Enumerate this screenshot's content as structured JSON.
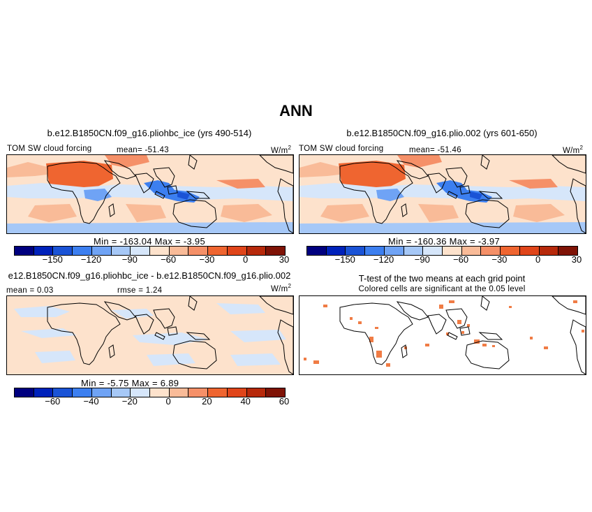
{
  "figure": {
    "title": "ANN"
  },
  "panels": [
    {
      "title": "b.e12.B1850CN.f09_g16.pliohbc_ice (yrs 490-514)",
      "variable": "TOM SW cloud forcing",
      "mean_text": "mean= -51.43",
      "units_base": "W/m",
      "units_exp": "2",
      "minmax_text": "Min = -163.04 Max = -3.95",
      "colorbar_ticks": [
        "-150",
        "-120",
        "-90",
        "-60",
        "-30",
        "0",
        "30"
      ]
    },
    {
      "title": "b.e12.B1850CN.f09_g16.plio.002 (yrs 601-650)",
      "variable": "TOM SW cloud forcing",
      "mean_text": "mean= -51.46",
      "units_base": "W/m",
      "units_exp": "2",
      "minmax_text": "Min = -160.36 Max = -3.97",
      "colorbar_ticks": [
        "-150",
        "-120",
        "-90",
        "-60",
        "-30",
        "0",
        "30"
      ]
    },
    {
      "title": "e12.B1850CN.f09_g16.pliohbc_ice - b.e12.B1850CN.f09_g16.plio.002",
      "mean_text": "mean = 0.03",
      "rmse_text": "rmse = 1.24",
      "units_base": "W/m",
      "units_exp": "2",
      "minmax_text": "Min = -5.75 Max = 6.89",
      "colorbar_ticks": [
        "-60",
        "-40",
        "-20",
        "0",
        "20",
        "40",
        "60"
      ]
    },
    {
      "title": "T-test of the two means at each grid point",
      "subtitle": "Colored cells are significant at the 0.05 level"
    }
  ],
  "colors": {
    "scale": [
      "#00007f",
      "#0022bb",
      "#1a53d6",
      "#3c7ff0",
      "#6fa3f5",
      "#a6c8f7",
      "#d6e6fa",
      "#fde2cc",
      "#f9bb98",
      "#f59068",
      "#ef6530",
      "#e0451a",
      "#b7290b",
      "#7f1306"
    ],
    "significance": "#f07c45",
    "coast": "#000000"
  },
  "chart_data": {
    "type": "heatmap",
    "panels": [
      {
        "title": "b.e12.B1850CN.f09_g16.pliohbc_ice (yrs 490-514)",
        "mean": -51.43,
        "min": -163.04,
        "max": -3.95,
        "colorbar_ticks": [
          -150,
          -120,
          -90,
          -60,
          -30,
          0,
          30
        ]
      },
      {
        "title": "b.e12.B1850CN.f09_g16.plio.002 (yrs 601-650)",
        "mean": -51.46,
        "min": -160.36,
        "max": -3.97,
        "colorbar_ticks": [
          -150,
          -120,
          -90,
          -60,
          -30,
          0,
          30
        ]
      },
      {
        "title": "e12.B1850CN.f09_g16.pliohbc_ice - b.e12.B1850CN.f09_g16.plio.002",
        "mean": 0.03,
        "rmse": 1.24,
        "min": -5.75,
        "max": 6.89,
        "colorbar_ticks": [
          -60,
          -40,
          -20,
          0,
          20,
          40,
          60
        ]
      },
      {
        "title": "T-test of the two means at each grid point",
        "note": "Colored cells are significant at the 0.05 level"
      }
    ]
  }
}
